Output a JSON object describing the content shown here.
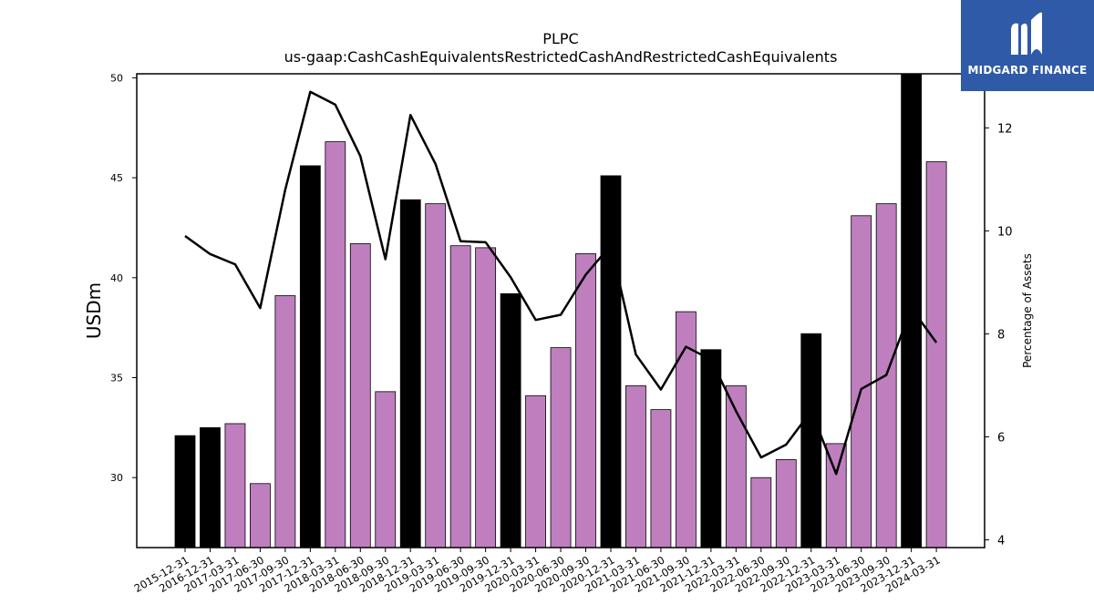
{
  "chart_data": {
    "type": "bar",
    "title": "PLPC",
    "subtitle": "us-gaap:CashCashEquivalentsRestrictedCashAndRestrictedCashEquivalents",
    "ylabel": "USDm",
    "y2label": "Percentage of Assets",
    "ylim": [
      26.5,
      50.2
    ],
    "y2lim": [
      3.85,
      13.05
    ],
    "yticks": [
      30,
      35,
      40,
      45,
      50
    ],
    "y2ticks": [
      4,
      6,
      8,
      10,
      12
    ],
    "categories": [
      "2015-12-31",
      "2016-12-31",
      "2017-03-31",
      "2017-06-30",
      "2017-09-30",
      "2017-12-31",
      "2018-03-31",
      "2018-06-30",
      "2018-09-30",
      "2018-12-31",
      "2019-03-31",
      "2019-06-30",
      "2019-09-30",
      "2019-12-31",
      "2020-03-31",
      "2020-06-30",
      "2020-09-30",
      "2020-12-31",
      "2021-03-31",
      "2021-06-30",
      "2021-09-30",
      "2021-12-31",
      "2022-03-31",
      "2022-06-30",
      "2022-09-30",
      "2022-12-31",
      "2023-03-31",
      "2023-06-30",
      "2023-09-30",
      "2023-12-31",
      "2024-03-31"
    ],
    "series": [
      {
        "type": "bar",
        "values": [
          32.1,
          32.5,
          32.7,
          29.7,
          39.1,
          45.6,
          46.8,
          41.7,
          34.3,
          43.9,
          43.7,
          41.6,
          41.5,
          39.2,
          34.1,
          36.5,
          41.2,
          45.1,
          34.6,
          33.4,
          38.3,
          36.4,
          34.6,
          30.0,
          30.9,
          37.2,
          31.7,
          43.1,
          43.7,
          50.2,
          45.8
        ],
        "colors": [
          "#000000",
          "#000000",
          "#bf7fbf",
          "#bf7fbf",
          "#bf7fbf",
          "#000000",
          "#bf7fbf",
          "#bf7fbf",
          "#bf7fbf",
          "#000000",
          "#bf7fbf",
          "#bf7fbf",
          "#bf7fbf",
          "#000000",
          "#bf7fbf",
          "#bf7fbf",
          "#bf7fbf",
          "#000000",
          "#bf7fbf",
          "#bf7fbf",
          "#bf7fbf",
          "#000000",
          "#bf7fbf",
          "#bf7fbf",
          "#bf7fbf",
          "#000000",
          "#bf7fbf",
          "#bf7fbf",
          "#bf7fbf",
          "#000000",
          "#bf7fbf"
        ]
      },
      {
        "type": "line",
        "axis": "right",
        "color": "#000000",
        "values": [
          9.9,
          9.55,
          9.35,
          8.5,
          10.8,
          12.7,
          12.45,
          11.45,
          9.45,
          12.25,
          11.3,
          9.8,
          9.78,
          9.1,
          8.27,
          8.37,
          9.15,
          9.72,
          7.6,
          6.92,
          7.75,
          7.5,
          6.5,
          5.6,
          5.85,
          6.5,
          5.28,
          6.93,
          7.2,
          8.5,
          7.83
        ]
      }
    ],
    "grid": false,
    "legend": "none"
  },
  "logo": {
    "text": "MIDGARD FINANCE",
    "icon": "midgard-logo-icon",
    "background": "#2f5aa8"
  }
}
